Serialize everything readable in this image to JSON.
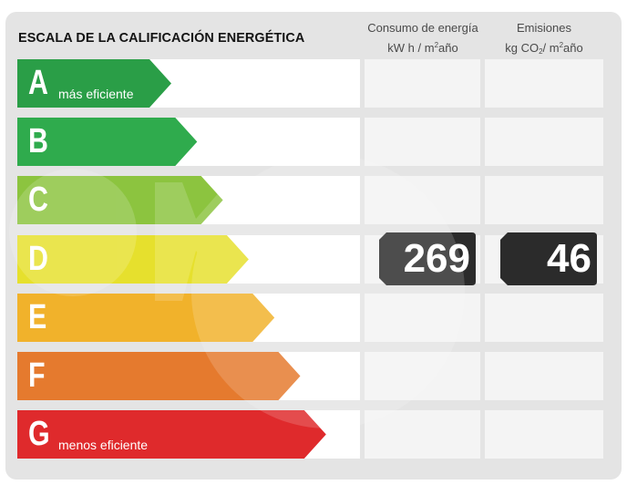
{
  "header": {
    "title": "ESCALA DE LA CALIFICACIÓN ENERGÉTICA",
    "col1_line1": "Consumo de energía",
    "col1_line2_prefix": "kW h / m",
    "col1_line2_sup": "2",
    "col1_line2_suffix": "año",
    "col2_line1": "Emisiones",
    "col2_line2_prefix": "kg CO",
    "col2_line2_sub": "2",
    "col2_line2_mid": "/ m",
    "col2_line2_sup": "2",
    "col2_line2_suffix": "año"
  },
  "chart_data": {
    "type": "table",
    "title": "ESCALA DE LA CALIFICACIÓN ENERGÉTICA",
    "categories": [
      "A",
      "B",
      "C",
      "D",
      "E",
      "F",
      "G"
    ],
    "category_colors": [
      "#2a9e47",
      "#2fab4d",
      "#8cc43f",
      "#e6e02d",
      "#f1b22b",
      "#e57a2e",
      "#df2a2c"
    ],
    "top_label": "más eficiente",
    "bottom_label": "menos eficiente",
    "columns": [
      "Consumo de energía kW h / m²año",
      "Emisiones kg CO₂/ m²año"
    ],
    "rating": {
      "energy_consumption": {
        "class": "D",
        "value": 269
      },
      "emissions": {
        "class": "D",
        "value": 46
      }
    }
  },
  "colors": {
    "card": "#e4e4e4",
    "badge": "#2b2b2b",
    "row": "#ffffff"
  }
}
